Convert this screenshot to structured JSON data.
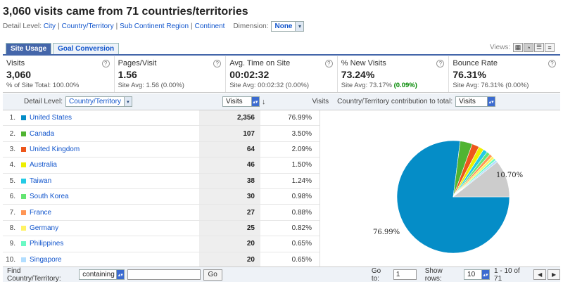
{
  "header": {
    "title": "3,060 visits came from 71 countries/territories",
    "detail_level_label": "Detail Level:",
    "levels": [
      "City",
      "Country/Territory",
      "Sub Continent Region",
      "Continent"
    ],
    "dimension_label": "Dimension:",
    "dimension_value": "None"
  },
  "tabs": [
    {
      "label": "Site Usage",
      "active": true
    },
    {
      "label": "Goal Conversion",
      "active": false
    }
  ],
  "views_label": "Views:",
  "view_icons": [
    "table-view-icon",
    "pie-view-icon",
    "performance-view-icon",
    "comparison-view-icon"
  ],
  "metrics": [
    {
      "label": "Visits",
      "value": "3,060",
      "sub": "% of Site Total: 100.00%",
      "change": ""
    },
    {
      "label": "Pages/Visit",
      "value": "1.56",
      "sub": "Site Avg: 1.56 (0.00%)",
      "change": ""
    },
    {
      "label": "Avg. Time on Site",
      "value": "00:02:32",
      "sub": "Site Avg: 00:02:32 (0.00%)",
      "change": ""
    },
    {
      "label": "% New Visits",
      "value": "73.24%",
      "sub": "Site Avg: 73.17% ",
      "change": "(0.09%)"
    },
    {
      "label": "Bounce Rate",
      "value": "76.31%",
      "sub": "Site Avg: 76.31% (0.00%)",
      "change": ""
    }
  ],
  "table": {
    "detail_label": "Detail Level:",
    "detail_value": "Country/Territory",
    "sort_metric": "Visits",
    "col_visits": "Visits",
    "contribution_label": "Country/Territory contribution to total:",
    "contribution_metric": "Visits",
    "rows": [
      {
        "num": "1.",
        "name": "United States",
        "visits": "2,356",
        "pct": "76.99%",
        "color": "#058dc7"
      },
      {
        "num": "2.",
        "name": "Canada",
        "visits": "107",
        "pct": "3.50%",
        "color": "#50b432"
      },
      {
        "num": "3.",
        "name": "United Kingdom",
        "visits": "64",
        "pct": "2.09%",
        "color": "#ed561b"
      },
      {
        "num": "4.",
        "name": "Australia",
        "visits": "46",
        "pct": "1.50%",
        "color": "#edef00"
      },
      {
        "num": "5.",
        "name": "Taiwan",
        "visits": "38",
        "pct": "1.24%",
        "color": "#24cbe5"
      },
      {
        "num": "6.",
        "name": "South Korea",
        "visits": "30",
        "pct": "0.98%",
        "color": "#64e572"
      },
      {
        "num": "7.",
        "name": "France",
        "visits": "27",
        "pct": "0.88%",
        "color": "#ff9655"
      },
      {
        "num": "8.",
        "name": "Germany",
        "visits": "25",
        "pct": "0.82%",
        "color": "#fff263"
      },
      {
        "num": "9.",
        "name": "Philippines",
        "visits": "20",
        "pct": "0.65%",
        "color": "#6af9c4"
      },
      {
        "num": "10.",
        "name": "Singapore",
        "visits": "20",
        "pct": "0.65%",
        "color": "#b2deff"
      }
    ]
  },
  "chart_data": {
    "type": "pie",
    "categories": [
      "United States",
      "Canada",
      "United Kingdom",
      "Australia",
      "Taiwan",
      "South Korea",
      "France",
      "Germany",
      "Philippines",
      "Singapore",
      "(other)"
    ],
    "values": [
      76.99,
      3.5,
      2.09,
      1.5,
      1.24,
      0.98,
      0.88,
      0.82,
      0.65,
      0.65,
      10.7
    ],
    "colors": [
      "#058dc7",
      "#50b432",
      "#ed561b",
      "#edef00",
      "#24cbe5",
      "#64e572",
      "#ff9655",
      "#fff263",
      "#6af9c4",
      "#b2deff",
      "#cccccc"
    ],
    "labels_shown": [
      "76.99%",
      "10.70%"
    ]
  },
  "footer": {
    "find_label": "Find Country/Territory:",
    "match_value": "containing",
    "search_value": "",
    "go_label": "Go",
    "goto_label": "Go to:",
    "goto_value": "1",
    "show_rows_label": "Show rows:",
    "show_rows_value": "10",
    "range_text": "1 - 10 of 71"
  }
}
